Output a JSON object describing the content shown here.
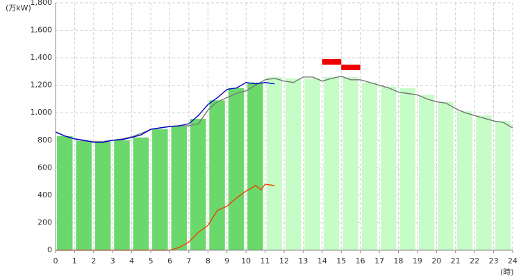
{
  "chart_data": {
    "type": "combo",
    "y_label": "(万kW)",
    "x_label": "(時)",
    "grid": true,
    "xlim": [
      0,
      24
    ],
    "xticks": [
      0,
      1,
      2,
      3,
      4,
      5,
      6,
      7,
      8,
      9,
      10,
      11,
      12,
      13,
      14,
      15,
      16,
      17,
      18,
      19,
      20,
      21,
      22,
      23,
      24
    ],
    "ylim": [
      0,
      1800
    ],
    "yticks": [
      0,
      200,
      400,
      600,
      800,
      {
        "value": 1000,
        "label": "1,000"
      },
      {
        "value": 1200,
        "label": "1,200"
      },
      {
        "value": 1400,
        "label": "1,400"
      },
      {
        "value": 1600,
        "label": "1,600"
      },
      {
        "value": 1800,
        "label": "1,800"
      }
    ],
    "bars": [
      {
        "color": "#6ad86a",
        "x": [
          0,
          1,
          2,
          3,
          4,
          5,
          6,
          7,
          8,
          9,
          10
        ],
        "values": [
          830,
          795,
          790,
          800,
          820,
          880,
          900,
          955,
          1090,
          1180,
          1220
        ]
      },
      {
        "color": "#c6fcc6",
        "x": [
          11,
          12,
          13,
          14,
          15,
          16,
          17,
          18,
          19,
          20,
          21,
          22,
          23
        ],
        "values": [
          1260,
          1250,
          1250,
          1260,
          1260,
          1220,
          1190,
          1180,
          1130,
          1080,
          1010,
          980,
          940
        ]
      }
    ],
    "bar_width": 0.82,
    "peaks": {
      "color": "#f00000",
      "x": [
        [
          14,
          15
        ],
        [
          15,
          16
        ]
      ],
      "values": [
        1370,
        1330
      ]
    },
    "series": [
      {
        "color": "#777777",
        "x": [
          0,
          0.5,
          1,
          1.5,
          2,
          2.5,
          3,
          3.5,
          4,
          4.5,
          5,
          5.5,
          6,
          6.5,
          7,
          7.5,
          8,
          8.5,
          9,
          9.5,
          10,
          10.5,
          11,
          11.5,
          12,
          12.5,
          13,
          13.5,
          14,
          14.5,
          15,
          15.5,
          16,
          16.5,
          17,
          17.5,
          18,
          18.5,
          19,
          19.5,
          20,
          20.5,
          21,
          21.5,
          22,
          22.5,
          23,
          23.5,
          24
        ],
        "values": [
          860,
          830,
          810,
          795,
          790,
          790,
          800,
          810,
          825,
          850,
          880,
          890,
          900,
          905,
          905,
          920,
          1020,
          1080,
          1110,
          1140,
          1160,
          1200,
          1240,
          1250,
          1230,
          1220,
          1260,
          1260,
          1230,
          1250,
          1265,
          1240,
          1240,
          1220,
          1200,
          1180,
          1150,
          1140,
          1130,
          1100,
          1080,
          1070,
          1030,
          1000,
          980,
          960,
          940,
          930,
          890
        ]
      },
      {
        "color": "#0000cc",
        "x": [
          0,
          0.5,
          1,
          1.5,
          2,
          2.5,
          3,
          3.5,
          4,
          4.5,
          5,
          5.5,
          6,
          6.5,
          7,
          7.5,
          8,
          8.5,
          9,
          9.5,
          10,
          10.5,
          11,
          11.5
        ],
        "values": [
          860,
          830,
          810,
          800,
          785,
          785,
          800,
          805,
          820,
          840,
          880,
          890,
          900,
          905,
          920,
          980,
          1060,
          1110,
          1170,
          1180,
          1220,
          1210,
          1220,
          1210
        ]
      },
      {
        "color": "#ee4400",
        "x": [
          0,
          6,
          6.5,
          7,
          7.5,
          8,
          8.5,
          9,
          9.5,
          10,
          10.5,
          10.8,
          11,
          11.5
        ],
        "values": [
          0,
          0,
          20,
          60,
          130,
          180,
          290,
          320,
          380,
          430,
          470,
          440,
          480,
          470
        ]
      }
    ]
  }
}
